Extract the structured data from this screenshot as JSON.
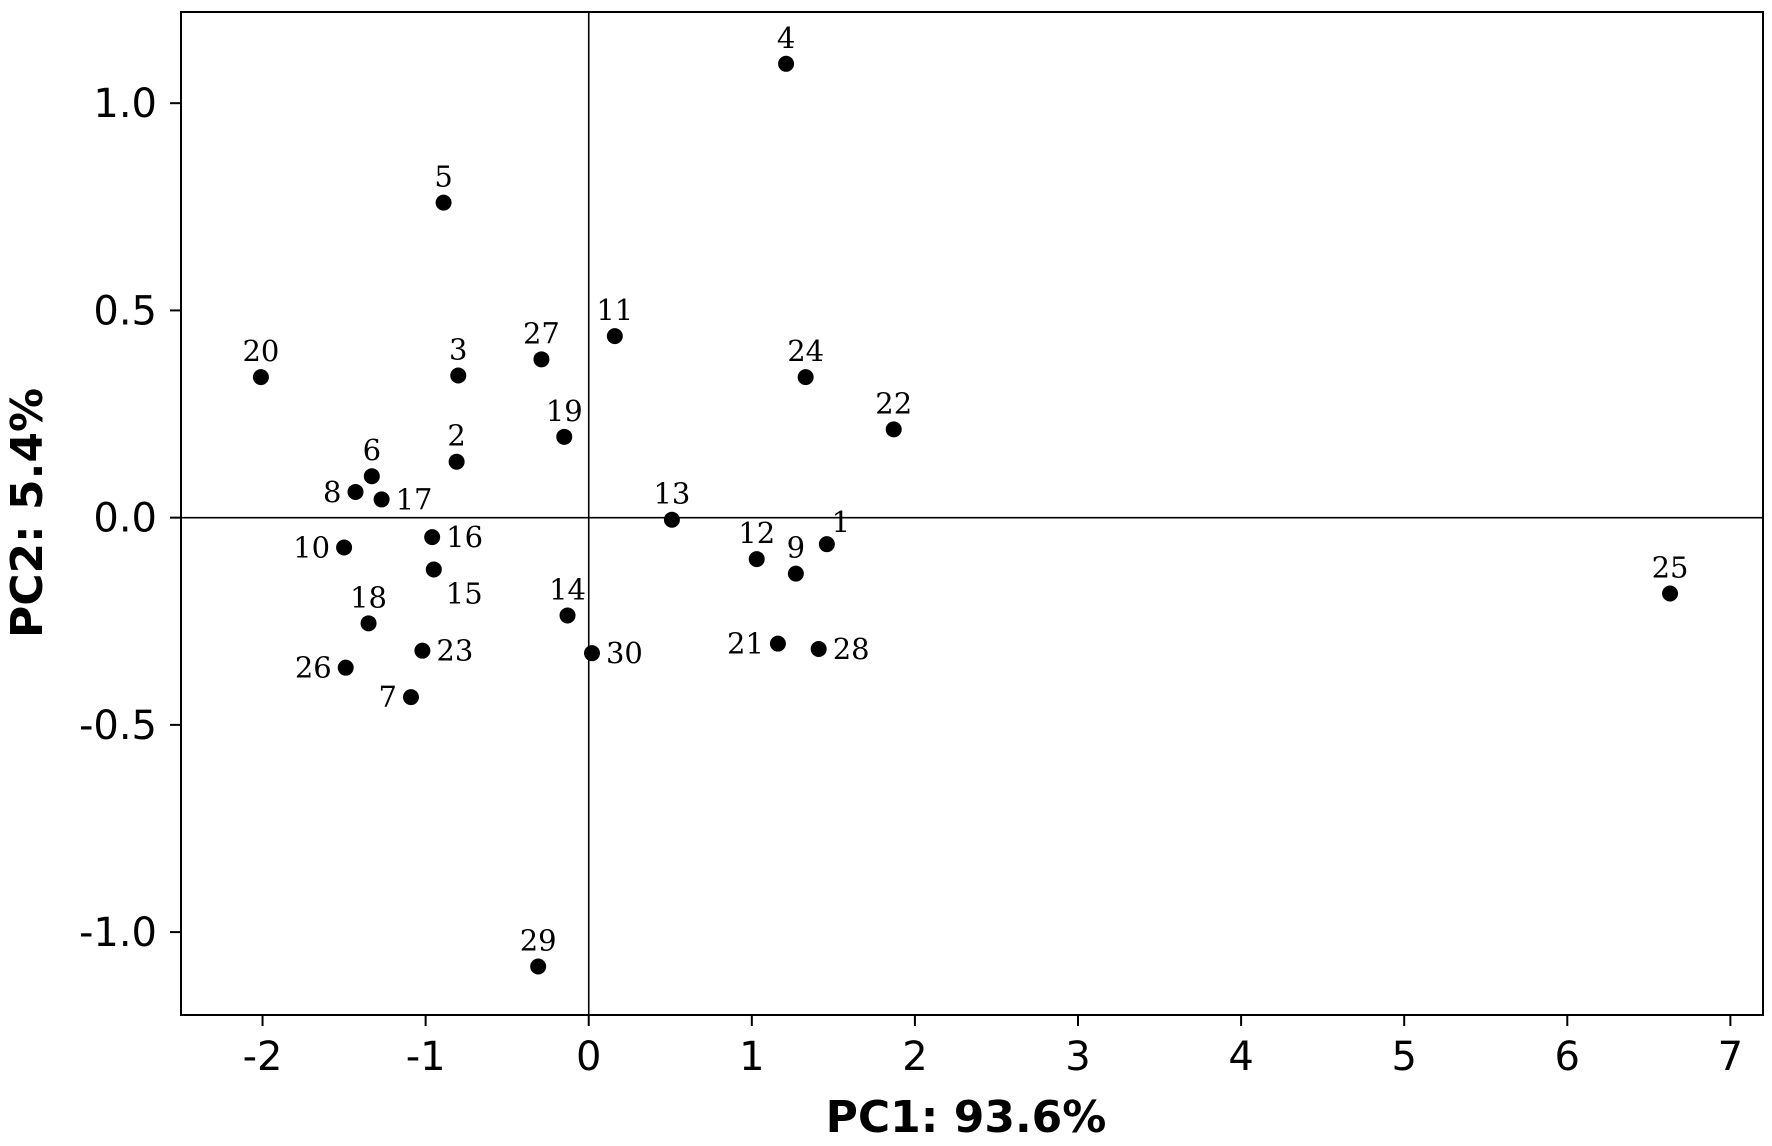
{
  "chart_data": {
    "type": "scatter",
    "title": "",
    "xlabel": "PC1: 93.6%",
    "ylabel": "PC2: 5.4%",
    "xlim": [
      -2.5,
      7.2
    ],
    "ylim": [
      -1.2,
      1.22
    ],
    "x_ticks": [
      -2,
      -1,
      0,
      1,
      2,
      3,
      4,
      5,
      6,
      7
    ],
    "x_tick_labels": [
      "-2",
      "-1",
      "0",
      "1",
      "2",
      "3",
      "4",
      "5",
      "6",
      "7"
    ],
    "y_ticks": [
      1.0,
      0.5,
      0.0,
      -0.5,
      -1.0
    ],
    "y_tick_labels": [
      "1.0",
      "0.5",
      "0.0",
      "-0.5",
      "-1.0"
    ],
    "reference_lines": {
      "x": 0,
      "y": 0
    },
    "grid": false,
    "marker_color": "#000000",
    "points": [
      {
        "label": "1",
        "x": 1.46,
        "y": -0.064,
        "label_pos": "above-right"
      },
      {
        "label": "2",
        "x": -0.81,
        "y": 0.135,
        "label_pos": "above"
      },
      {
        "label": "3",
        "x": -0.8,
        "y": 0.343,
        "label_pos": "above"
      },
      {
        "label": "4",
        "x": 1.21,
        "y": 1.095,
        "label_pos": "above"
      },
      {
        "label": "5",
        "x": -0.89,
        "y": 0.76,
        "label_pos": "above"
      },
      {
        "label": "6",
        "x": -1.33,
        "y": 0.1,
        "label_pos": "above"
      },
      {
        "label": "7",
        "x": -1.09,
        "y": -0.433,
        "label_pos": "left"
      },
      {
        "label": "8",
        "x": -1.43,
        "y": 0.062,
        "label_pos": "left"
      },
      {
        "label": "9",
        "x": 1.27,
        "y": -0.135,
        "label_pos": "above"
      },
      {
        "label": "10",
        "x": -1.5,
        "y": -0.072,
        "label_pos": "left"
      },
      {
        "label": "11",
        "x": 0.16,
        "y": 0.438,
        "label_pos": "above"
      },
      {
        "label": "12",
        "x": 1.03,
        "y": -0.1,
        "label_pos": "above"
      },
      {
        "label": "13",
        "x": 0.51,
        "y": -0.005,
        "label_pos": "above"
      },
      {
        "label": "14",
        "x": -0.13,
        "y": -0.236,
        "label_pos": "above"
      },
      {
        "label": "15",
        "x": -0.95,
        "y": -0.125,
        "label_pos": "below-right"
      },
      {
        "label": "16",
        "x": -0.96,
        "y": -0.047,
        "label_pos": "right"
      },
      {
        "label": "17",
        "x": -1.27,
        "y": 0.044,
        "label_pos": "right"
      },
      {
        "label": "18",
        "x": -1.35,
        "y": -0.255,
        "label_pos": "above"
      },
      {
        "label": "19",
        "x": -0.15,
        "y": 0.195,
        "label_pos": "above"
      },
      {
        "label": "20",
        "x": -2.01,
        "y": 0.339,
        "label_pos": "above"
      },
      {
        "label": "21",
        "x": 1.16,
        "y": -0.304,
        "label_pos": "left"
      },
      {
        "label": "22",
        "x": 1.87,
        "y": 0.213,
        "label_pos": "above"
      },
      {
        "label": "23",
        "x": -1.02,
        "y": -0.321,
        "label_pos": "right"
      },
      {
        "label": "24",
        "x": 1.33,
        "y": 0.339,
        "label_pos": "above"
      },
      {
        "label": "25",
        "x": 6.63,
        "y": -0.183,
        "label_pos": "above"
      },
      {
        "label": "26",
        "x": -1.49,
        "y": -0.362,
        "label_pos": "left"
      },
      {
        "label": "27",
        "x": -0.29,
        "y": 0.382,
        "label_pos": "above"
      },
      {
        "label": "28",
        "x": 1.41,
        "y": -0.317,
        "label_pos": "right"
      },
      {
        "label": "29",
        "x": -0.31,
        "y": -1.083,
        "label_pos": "above"
      },
      {
        "label": "30",
        "x": 0.02,
        "y": -0.327,
        "label_pos": "right"
      }
    ]
  }
}
